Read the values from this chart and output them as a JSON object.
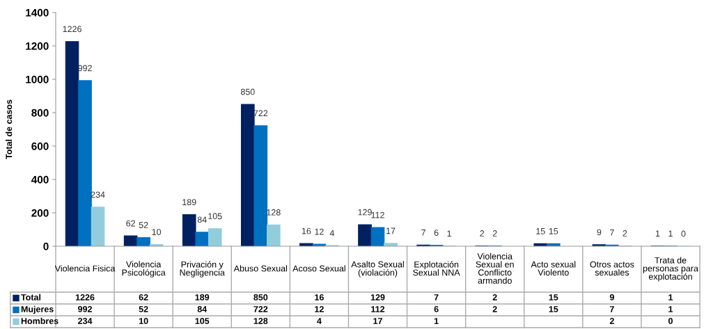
{
  "chart_data": [
    {
      "type": "bar",
      "ylabel": "Total de casos",
      "categories": [
        "Violencia Fisica",
        "Violencia\nPsicológica",
        "Privación y\nNegligencia",
        "Abuso Sexual",
        "Acoso Sexual",
        "Asalto Sexual\n(violación)",
        "Explotación\nSexual NNA",
        "Violencia\nSexual en\nConflicto\narmando",
        "Acto sexual\nViolento",
        "Otros actos\nsexuales",
        "Trata de\npersonas para\nexplotación"
      ],
      "series": [
        {
          "name": "Total",
          "color": "#002060",
          "values": [
            1226,
            62,
            189,
            850,
            16,
            129,
            7,
            2,
            15,
            9,
            1
          ],
          "value_labels": [
            "1226",
            "62",
            "189",
            "850",
            "16",
            "129",
            "7",
            "2",
            "15",
            "9",
            "1"
          ]
        },
        {
          "name": "Mujeres",
          "color": "#0070c0",
          "values": [
            992,
            52,
            84,
            722,
            12,
            112,
            6,
            2,
            15,
            7,
            1
          ],
          "value_labels": [
            "992",
            "52",
            "84",
            "722",
            "12",
            "112",
            "6",
            "2",
            "15",
            "7",
            "1"
          ]
        },
        {
          "name": "Hombres",
          "color": "#92cddc",
          "values": [
            234,
            10,
            105,
            128,
            4,
            17,
            1,
            null,
            null,
            2,
            0
          ],
          "value_labels": [
            "234",
            "10",
            "105",
            "128",
            "4",
            "17",
            "1",
            null,
            null,
            "2",
            "0"
          ]
        }
      ],
      "ylim": [
        0,
        1400
      ],
      "yticks": [
        0,
        200,
        400,
        600,
        800,
        1000,
        1200,
        1400
      ],
      "data_labels": true,
      "legend": "bottom left",
      "grid": false
    },
    {
      "type": "other",
      "annotations": [
        "1226",
        "62",
        "189",
        "850",
        "16",
        "129",
        "7",
        "2",
        "15",
        "9",
        "1",
        "992",
        "52",
        "84",
        "722",
        "12",
        "112",
        "6",
        "2",
        "15",
        "7",
        "1",
        "234",
        "10",
        "105",
        "128",
        "4",
        "17",
        "1",
        "2",
        "0"
      ]
    }
  ]
}
